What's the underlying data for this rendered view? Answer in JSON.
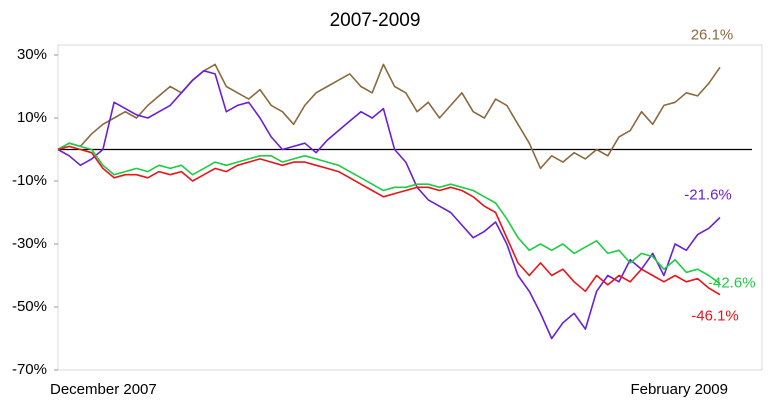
{
  "chart_data": {
    "type": "line",
    "title": "2007-2009",
    "categories": [
      "December 2007",
      null,
      null,
      null,
      null,
      null,
      null,
      null,
      null,
      null,
      null,
      null,
      null,
      null,
      null,
      null,
      null,
      null,
      null,
      null,
      null,
      null,
      null,
      null,
      null,
      null,
      null,
      null,
      null,
      null,
      null,
      null,
      null,
      null,
      null,
      null,
      null,
      null,
      null,
      null,
      null,
      null,
      null,
      null,
      null,
      null,
      null,
      null,
      null,
      null,
      null,
      null,
      null,
      null,
      null,
      null,
      null,
      null,
      null,
      "February 2009"
    ],
    "ylim": [
      -70,
      30
    ],
    "yticks": [
      {
        "value": 30,
        "label": "30%"
      },
      {
        "value": 10,
        "label": "10%"
      },
      {
        "value": -10,
        "label": "-10%"
      },
      {
        "value": -30,
        "label": "-30%"
      },
      {
        "value": -50,
        "label": "-50%"
      },
      {
        "value": -70,
        "label": "-70%"
      }
    ],
    "series": [
      {
        "color": "#8b6a3e",
        "values": [
          0,
          2,
          1,
          5,
          8,
          10,
          12,
          10,
          14,
          17,
          20,
          18,
          22,
          25,
          27,
          20,
          18,
          16,
          19,
          14,
          12,
          8,
          14,
          18,
          20,
          22,
          24,
          20,
          18,
          27,
          20,
          18,
          12,
          15,
          10,
          14,
          18,
          12,
          10,
          16,
          14,
          8,
          2,
          -6,
          -2,
          -4,
          -1,
          -3,
          0,
          -2,
          4,
          6,
          12,
          8,
          14,
          15,
          18,
          17,
          21,
          26.1
        ],
        "value_labels": [
          null,
          null,
          null,
          null,
          null,
          null,
          null,
          null,
          null,
          null,
          null,
          null,
          null,
          null,
          null,
          null,
          null,
          null,
          null,
          null,
          null,
          null,
          null,
          null,
          null,
          null,
          null,
          null,
          null,
          null,
          null,
          null,
          null,
          null,
          null,
          null,
          null,
          null,
          null,
          null,
          null,
          null,
          null,
          null,
          null,
          null,
          null,
          null,
          null,
          null,
          null,
          null,
          null,
          null,
          null,
          null,
          null,
          null,
          null,
          "26.1%"
        ]
      },
      {
        "color": "#6a1fd6",
        "values": [
          0,
          -2,
          -5,
          -3,
          0,
          15,
          13,
          11,
          10,
          12,
          14,
          18,
          22,
          25,
          24,
          12,
          14,
          15,
          10,
          4,
          0,
          1,
          2,
          -1,
          3,
          6,
          9,
          12,
          10,
          13,
          0,
          -4,
          -12,
          -16,
          -18,
          -20,
          -24,
          -28,
          -26,
          -23,
          -30,
          -40,
          -45,
          -52,
          -60,
          -55,
          -52,
          -57,
          -45,
          -40,
          -42,
          -35,
          -38,
          -33,
          -40,
          -30,
          -32,
          -27,
          -25,
          -21.6
        ],
        "value_labels": [
          null,
          null,
          null,
          null,
          null,
          null,
          null,
          null,
          null,
          null,
          null,
          null,
          null,
          null,
          null,
          null,
          null,
          null,
          null,
          null,
          null,
          null,
          null,
          null,
          null,
          null,
          null,
          null,
          null,
          null,
          null,
          null,
          null,
          null,
          null,
          null,
          null,
          null,
          null,
          null,
          null,
          null,
          null,
          null,
          null,
          null,
          null,
          null,
          null,
          null,
          null,
          null,
          null,
          null,
          null,
          null,
          null,
          null,
          null,
          "-21.6%"
        ]
      },
      {
        "color": "#1fcc45",
        "values": [
          0,
          2,
          1,
          0,
          -5,
          -8,
          -7,
          -6,
          -7,
          -5,
          -6,
          -5,
          -8,
          -6,
          -4,
          -5,
          -4,
          -3,
          -2,
          -2,
          -4,
          -3,
          -2,
          -3,
          -4,
          -5,
          -7,
          -9,
          -11,
          -13,
          -12,
          -12,
          -11,
          -11,
          -12,
          -11,
          -12,
          -13,
          -15,
          -17,
          -22,
          -28,
          -32,
          -30,
          -32,
          -30,
          -33,
          -31,
          -29,
          -33,
          -32,
          -36,
          -33,
          -34,
          -38,
          -35,
          -39,
          -38,
          -40,
          -42.6
        ],
        "value_labels": [
          null,
          null,
          null,
          null,
          null,
          null,
          null,
          null,
          null,
          null,
          null,
          null,
          null,
          null,
          null,
          null,
          null,
          null,
          null,
          null,
          null,
          null,
          null,
          null,
          null,
          null,
          null,
          null,
          null,
          null,
          null,
          null,
          null,
          null,
          null,
          null,
          null,
          null,
          null,
          null,
          null,
          null,
          null,
          null,
          null,
          null,
          null,
          null,
          null,
          null,
          null,
          null,
          null,
          null,
          null,
          null,
          null,
          null,
          null,
          "-42.6%"
        ]
      },
      {
        "color": "#e8151b",
        "values": [
          0,
          1,
          0,
          -1,
          -6,
          -9,
          -8,
          -8,
          -9,
          -7,
          -8,
          -7,
          -10,
          -8,
          -6,
          -7,
          -5,
          -4,
          -3,
          -4,
          -5,
          -4,
          -4,
          -5,
          -6,
          -7,
          -9,
          -11,
          -13,
          -15,
          -14,
          -13,
          -12,
          -12,
          -13,
          -12,
          -13,
          -15,
          -18,
          -20,
          -28,
          -36,
          -40,
          -36,
          -40,
          -38,
          -42,
          -45,
          -40,
          -43,
          -40,
          -42,
          -38,
          -40,
          -42,
          -40,
          -42,
          -41,
          -44,
          -46.1
        ],
        "value_labels": [
          null,
          null,
          null,
          null,
          null,
          null,
          null,
          null,
          null,
          null,
          null,
          null,
          null,
          null,
          null,
          null,
          null,
          null,
          null,
          null,
          null,
          null,
          null,
          null,
          null,
          null,
          null,
          null,
          null,
          null,
          null,
          null,
          null,
          null,
          null,
          null,
          null,
          null,
          null,
          null,
          null,
          null,
          null,
          null,
          null,
          null,
          null,
          null,
          null,
          null,
          null,
          null,
          null,
          null,
          null,
          null,
          null,
          null,
          null,
          "-46.1%"
        ]
      }
    ]
  }
}
